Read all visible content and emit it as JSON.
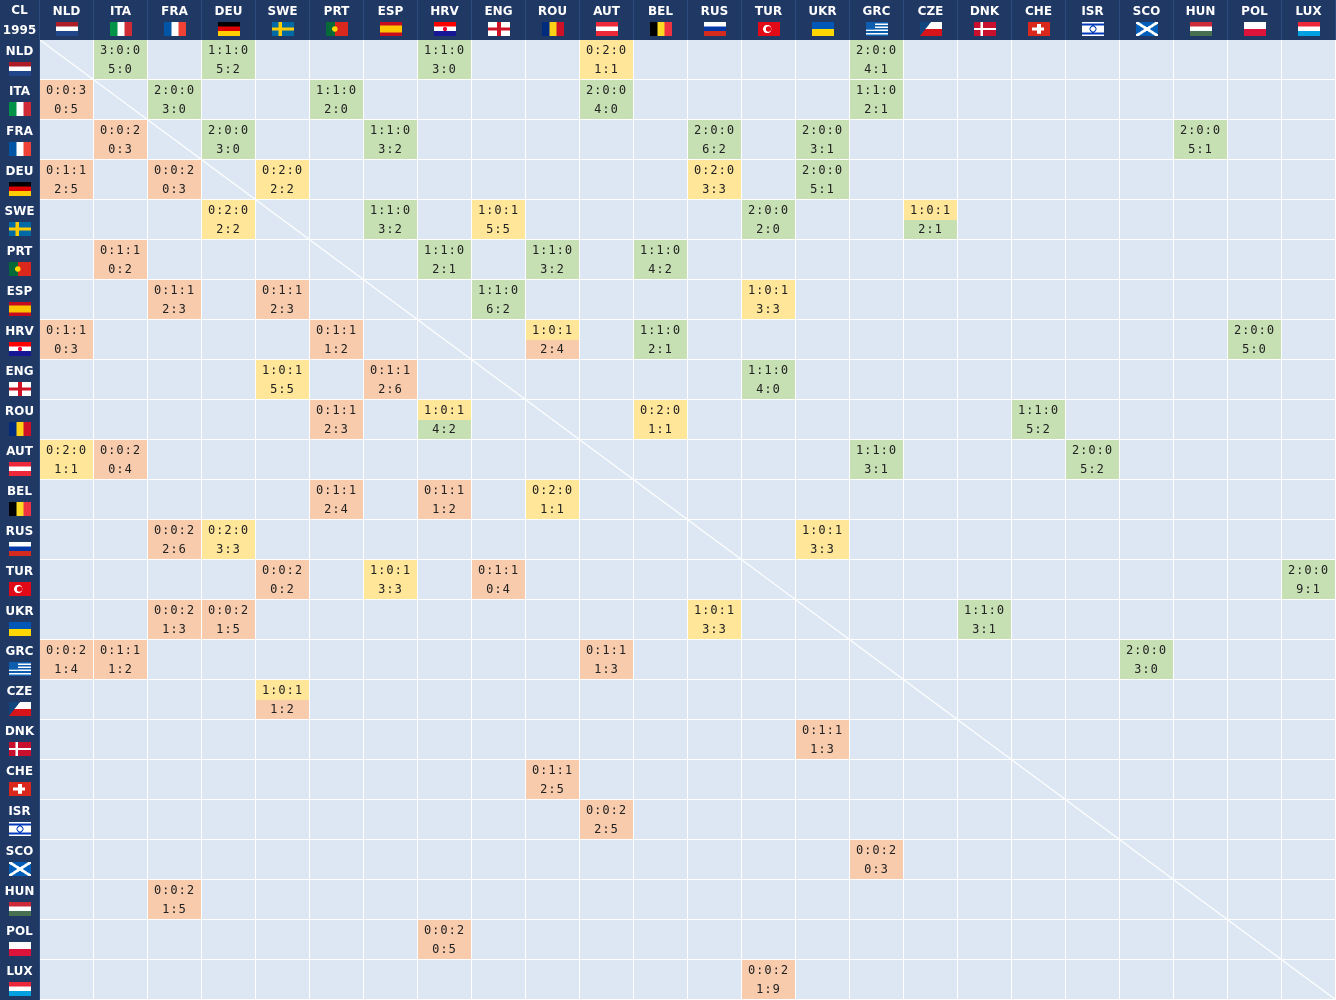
{
  "corner": {
    "title": "CL",
    "year": "1995"
  },
  "colors": {
    "header": "#203864",
    "cell": "#dde7f3",
    "win": "#c6e0b4",
    "even": "#ffe699",
    "loss": "#f8cbad"
  },
  "teams": [
    "NLD",
    "ITA",
    "FRA",
    "DEU",
    "SWE",
    "PRT",
    "ESP",
    "HRV",
    "ENG",
    "ROU",
    "AUT",
    "BEL",
    "RUS",
    "TUR",
    "UKR",
    "GRC",
    "CZE",
    "DNK",
    "CHE",
    "ISR",
    "SCO",
    "HUN",
    "POL",
    "LUX"
  ],
  "rows": [
    {
      "team": "NLD",
      "cells": [
        {
          "c": "ITA",
          "r": "3:0:0",
          "g": "5:0"
        },
        {
          "c": "DEU",
          "r": "1:1:0",
          "g": "5:2"
        },
        {
          "c": "HRV",
          "r": "1:1:0",
          "g": "3:0"
        },
        {
          "c": "AUT",
          "r": "0:2:0",
          "g": "1:1"
        },
        {
          "c": "GRC",
          "r": "2:0:0",
          "g": "4:1"
        }
      ]
    },
    {
      "team": "ITA",
      "cells": [
        {
          "c": "NLD",
          "r": "0:0:3",
          "g": "0:5"
        },
        {
          "c": "FRA",
          "r": "2:0:0",
          "g": "3:0"
        },
        {
          "c": "PRT",
          "r": "1:1:0",
          "g": "2:0"
        },
        {
          "c": "AUT",
          "r": "2:0:0",
          "g": "4:0"
        },
        {
          "c": "GRC",
          "r": "1:1:0",
          "g": "2:1"
        }
      ]
    },
    {
      "team": "FRA",
      "cells": [
        {
          "c": "ITA",
          "r": "0:0:2",
          "g": "0:3"
        },
        {
          "c": "DEU",
          "r": "2:0:0",
          "g": "3:0"
        },
        {
          "c": "ESP",
          "r": "1:1:0",
          "g": "3:2"
        },
        {
          "c": "RUS",
          "r": "2:0:0",
          "g": "6:2"
        },
        {
          "c": "UKR",
          "r": "2:0:0",
          "g": "3:1"
        },
        {
          "c": "HUN",
          "r": "2:0:0",
          "g": "5:1"
        }
      ]
    },
    {
      "team": "DEU",
      "cells": [
        {
          "c": "NLD",
          "r": "0:1:1",
          "g": "2:5"
        },
        {
          "c": "FRA",
          "r": "0:0:2",
          "g": "0:3"
        },
        {
          "c": "SWE",
          "r": "0:2:0",
          "g": "2:2"
        },
        {
          "c": "RUS",
          "r": "0:2:0",
          "g": "3:3"
        },
        {
          "c": "UKR",
          "r": "2:0:0",
          "g": "5:1"
        }
      ]
    },
    {
      "team": "SWE",
      "cells": [
        {
          "c": "DEU",
          "r": "0:2:0",
          "g": "2:2"
        },
        {
          "c": "ESP",
          "r": "1:1:0",
          "g": "3:2"
        },
        {
          "c": "ENG",
          "r": "1:0:1",
          "g": "5:5"
        },
        {
          "c": "TUR",
          "r": "2:0:0",
          "g": "2:0"
        },
        {
          "c": "CZE",
          "r": "1:0:1",
          "g": "2:1"
        }
      ]
    },
    {
      "team": "PRT",
      "cells": [
        {
          "c": "ITA",
          "r": "0:1:1",
          "g": "0:2"
        },
        {
          "c": "HRV",
          "r": "1:1:0",
          "g": "2:1"
        },
        {
          "c": "ROU",
          "r": "1:1:0",
          "g": "3:2"
        },
        {
          "c": "BEL",
          "r": "1:1:0",
          "g": "4:2"
        }
      ]
    },
    {
      "team": "ESP",
      "cells": [
        {
          "c": "FRA",
          "r": "0:1:1",
          "g": "2:3"
        },
        {
          "c": "SWE",
          "r": "0:1:1",
          "g": "2:3"
        },
        {
          "c": "ENG",
          "r": "1:1:0",
          "g": "6:2"
        },
        {
          "c": "TUR",
          "r": "1:0:1",
          "g": "3:3"
        }
      ]
    },
    {
      "team": "HRV",
      "cells": [
        {
          "c": "NLD",
          "r": "0:1:1",
          "g": "0:3"
        },
        {
          "c": "PRT",
          "r": "0:1:1",
          "g": "1:2"
        },
        {
          "c": "ROU",
          "r": "1:0:1",
          "g": "2:4"
        },
        {
          "c": "BEL",
          "r": "1:1:0",
          "g": "2:1"
        },
        {
          "c": "POL",
          "r": "2:0:0",
          "g": "5:0"
        }
      ]
    },
    {
      "team": "ENG",
      "cells": [
        {
          "c": "SWE",
          "r": "1:0:1",
          "g": "5:5"
        },
        {
          "c": "ESP",
          "r": "0:1:1",
          "g": "2:6"
        },
        {
          "c": "TUR",
          "r": "1:1:0",
          "g": "4:0"
        }
      ]
    },
    {
      "team": "ROU",
      "cells": [
        {
          "c": "PRT",
          "r": "0:1:1",
          "g": "2:3"
        },
        {
          "c": "HRV",
          "r": "1:0:1",
          "g": "4:2"
        },
        {
          "c": "BEL",
          "r": "0:2:0",
          "g": "1:1"
        },
        {
          "c": "CHE",
          "r": "1:1:0",
          "g": "5:2"
        }
      ]
    },
    {
      "team": "AUT",
      "cells": [
        {
          "c": "NLD",
          "r": "0:2:0",
          "g": "1:1"
        },
        {
          "c": "ITA",
          "r": "0:0:2",
          "g": "0:4"
        },
        {
          "c": "GRC",
          "r": "1:1:0",
          "g": "3:1"
        },
        {
          "c": "ISR",
          "r": "2:0:0",
          "g": "5:2"
        }
      ]
    },
    {
      "team": "BEL",
      "cells": [
        {
          "c": "PRT",
          "r": "0:1:1",
          "g": "2:4"
        },
        {
          "c": "HRV",
          "r": "0:1:1",
          "g": "1:2"
        },
        {
          "c": "ROU",
          "r": "0:2:0",
          "g": "1:1"
        }
      ]
    },
    {
      "team": "RUS",
      "cells": [
        {
          "c": "FRA",
          "r": "0:0:2",
          "g": "2:6"
        },
        {
          "c": "DEU",
          "r": "0:2:0",
          "g": "3:3"
        },
        {
          "c": "UKR",
          "r": "1:0:1",
          "g": "3:3"
        }
      ]
    },
    {
      "team": "TUR",
      "cells": [
        {
          "c": "SWE",
          "r": "0:0:2",
          "g": "0:2"
        },
        {
          "c": "ESP",
          "r": "1:0:1",
          "g": "3:3"
        },
        {
          "c": "ENG",
          "r": "0:1:1",
          "g": "0:4"
        },
        {
          "c": "LUX",
          "r": "2:0:0",
          "g": "9:1"
        }
      ]
    },
    {
      "team": "UKR",
      "cells": [
        {
          "c": "FRA",
          "r": "0:0:2",
          "g": "1:3"
        },
        {
          "c": "DEU",
          "r": "0:0:2",
          "g": "1:5"
        },
        {
          "c": "RUS",
          "r": "1:0:1",
          "g": "3:3"
        },
        {
          "c": "DNK",
          "r": "1:1:0",
          "g": "3:1"
        }
      ]
    },
    {
      "team": "GRC",
      "cells": [
        {
          "c": "NLD",
          "r": "0:0:2",
          "g": "1:4"
        },
        {
          "c": "ITA",
          "r": "0:1:1",
          "g": "1:2"
        },
        {
          "c": "AUT",
          "r": "0:1:1",
          "g": "1:3"
        },
        {
          "c": "SCO",
          "r": "2:0:0",
          "g": "3:0"
        }
      ]
    },
    {
      "team": "CZE",
      "cells": [
        {
          "c": "SWE",
          "r": "1:0:1",
          "g": "1:2"
        }
      ]
    },
    {
      "team": "DNK",
      "cells": [
        {
          "c": "UKR",
          "r": "0:1:1",
          "g": "1:3"
        }
      ]
    },
    {
      "team": "CHE",
      "cells": [
        {
          "c": "ROU",
          "r": "0:1:1",
          "g": "2:5"
        }
      ]
    },
    {
      "team": "ISR",
      "cells": [
        {
          "c": "AUT",
          "r": "0:0:2",
          "g": "2:5"
        }
      ]
    },
    {
      "team": "SCO",
      "cells": [
        {
          "c": "GRC",
          "r": "0:0:2",
          "g": "0:3"
        }
      ]
    },
    {
      "team": "HUN",
      "cells": [
        {
          "c": "FRA",
          "r": "0:0:2",
          "g": "1:5"
        }
      ]
    },
    {
      "team": "POL",
      "cells": [
        {
          "c": "HRV",
          "r": "0:0:2",
          "g": "0:5"
        }
      ]
    },
    {
      "team": "LUX",
      "cells": [
        {
          "c": "TUR",
          "r": "0:0:2",
          "g": "1:9"
        }
      ]
    }
  ]
}
